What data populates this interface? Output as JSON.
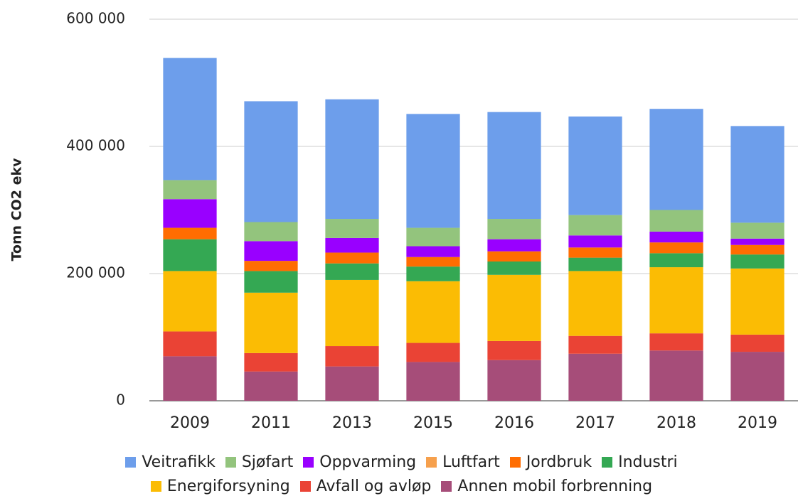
{
  "chart_data": {
    "type": "stacked_bar",
    "y_label": "Tonn CO2 ekv",
    "categories": [
      "2009",
      "2011",
      "2013",
      "2015",
      "2016",
      "2017",
      "2018",
      "2019"
    ],
    "series": [
      {
        "name": "Veitrafikk",
        "color": "#6d9eeb",
        "values": [
          192000,
          190000,
          188000,
          179000,
          168000,
          155000,
          159000,
          152000
        ]
      },
      {
        "name": "Sjøfart",
        "color": "#93c47d",
        "values": [
          30000,
          30000,
          30000,
          29000,
          32000,
          32000,
          34000,
          25000
        ]
      },
      {
        "name": "Oppvarming",
        "color": "#9900ff",
        "values": [
          45000,
          31000,
          23000,
          17000,
          19000,
          19000,
          17000,
          10000
        ]
      },
      {
        "name": "Luftfart",
        "color": "#f6a04d",
        "values": [
          0,
          0,
          0,
          0,
          0,
          0,
          0,
          0
        ]
      },
      {
        "name": "Jordbruk",
        "color": "#ff6d01",
        "values": [
          18000,
          16000,
          17000,
          15000,
          16000,
          16000,
          17000,
          15000
        ]
      },
      {
        "name": "Industri",
        "color": "#34a853",
        "values": [
          50000,
          34000,
          26000,
          23000,
          21000,
          21000,
          22000,
          22000
        ]
      },
      {
        "name": "Energiforsyning",
        "color": "#fbbc04",
        "values": [
          95000,
          95000,
          104000,
          97000,
          104000,
          102000,
          104000,
          104000
        ]
      },
      {
        "name": "Avfall og avløp",
        "color": "#ea4335",
        "values": [
          39000,
          29000,
          32000,
          30000,
          30000,
          28000,
          27000,
          27000
        ]
      },
      {
        "name": "Annen mobil forbrenning",
        "color": "#a64d79",
        "values": [
          70000,
          46000,
          54000,
          61000,
          64000,
          74000,
          79000,
          77000
        ]
      }
    ],
    "ylim": [
      0,
      600000
    ],
    "yticks": [
      0,
      {
        "value": 200000,
        "label": "200 000"
      },
      {
        "value": 400000,
        "label": "400 000"
      },
      {
        "value": 600000,
        "label": "600 000"
      }
    ],
    "grid": true
  }
}
